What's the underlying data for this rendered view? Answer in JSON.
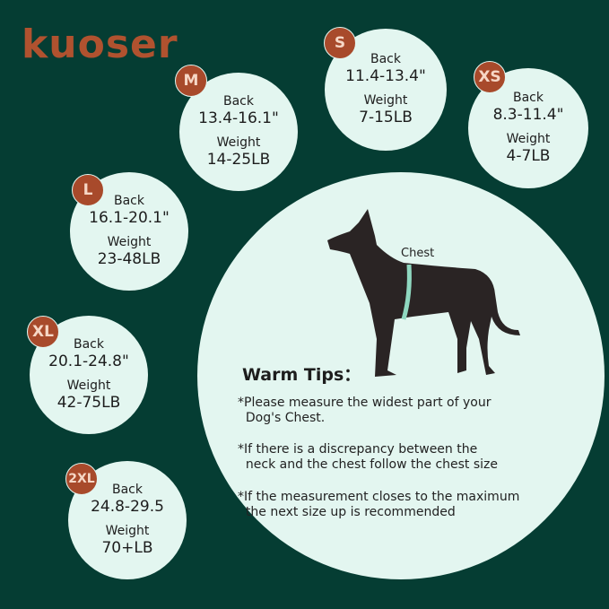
{
  "brand": "kuoser",
  "colors": {
    "background": "#053d33",
    "circle": "#e3f6f0",
    "badge": "#a84a2b",
    "tape": "#8fd8c0"
  },
  "sizes": [
    {
      "size": "M",
      "back_label": "Back",
      "back": "13.4-16.1\"",
      "weight_label": "Weight",
      "weight": "14-25LB"
    },
    {
      "size": "S",
      "back_label": "Back",
      "back": "11.4-13.4\"",
      "weight_label": "Weight",
      "weight": "7-15LB"
    },
    {
      "size": "XS",
      "back_label": "Back",
      "back": "8.3-11.4\"",
      "weight_label": "Weight",
      "weight": "4-7LB"
    },
    {
      "size": "L",
      "back_label": "Back",
      "back": "16.1-20.1\"",
      "weight_label": "Weight",
      "weight": "23-48LB"
    },
    {
      "size": "XL",
      "back_label": "Back",
      "back": "20.1-24.8\"",
      "weight_label": "Weight",
      "weight": "42-75LB"
    },
    {
      "size": "2XL",
      "back_label": "Back",
      "back": "24.8-29.5",
      "weight_label": "Weight",
      "weight": "70+LB"
    }
  ],
  "diagram": {
    "chest_label": "Chest",
    "icon": "dog-silhouette-icon"
  },
  "tips": {
    "title": "Warm Tips：",
    "items": [
      "*Please measure the widest part of your\n  Dog's Chest.",
      "*If there is a discrepancy between the\n  neck and the chest follow the chest size",
      "*If the measurement closes to the maximum\n  the next size up is recommended"
    ]
  }
}
